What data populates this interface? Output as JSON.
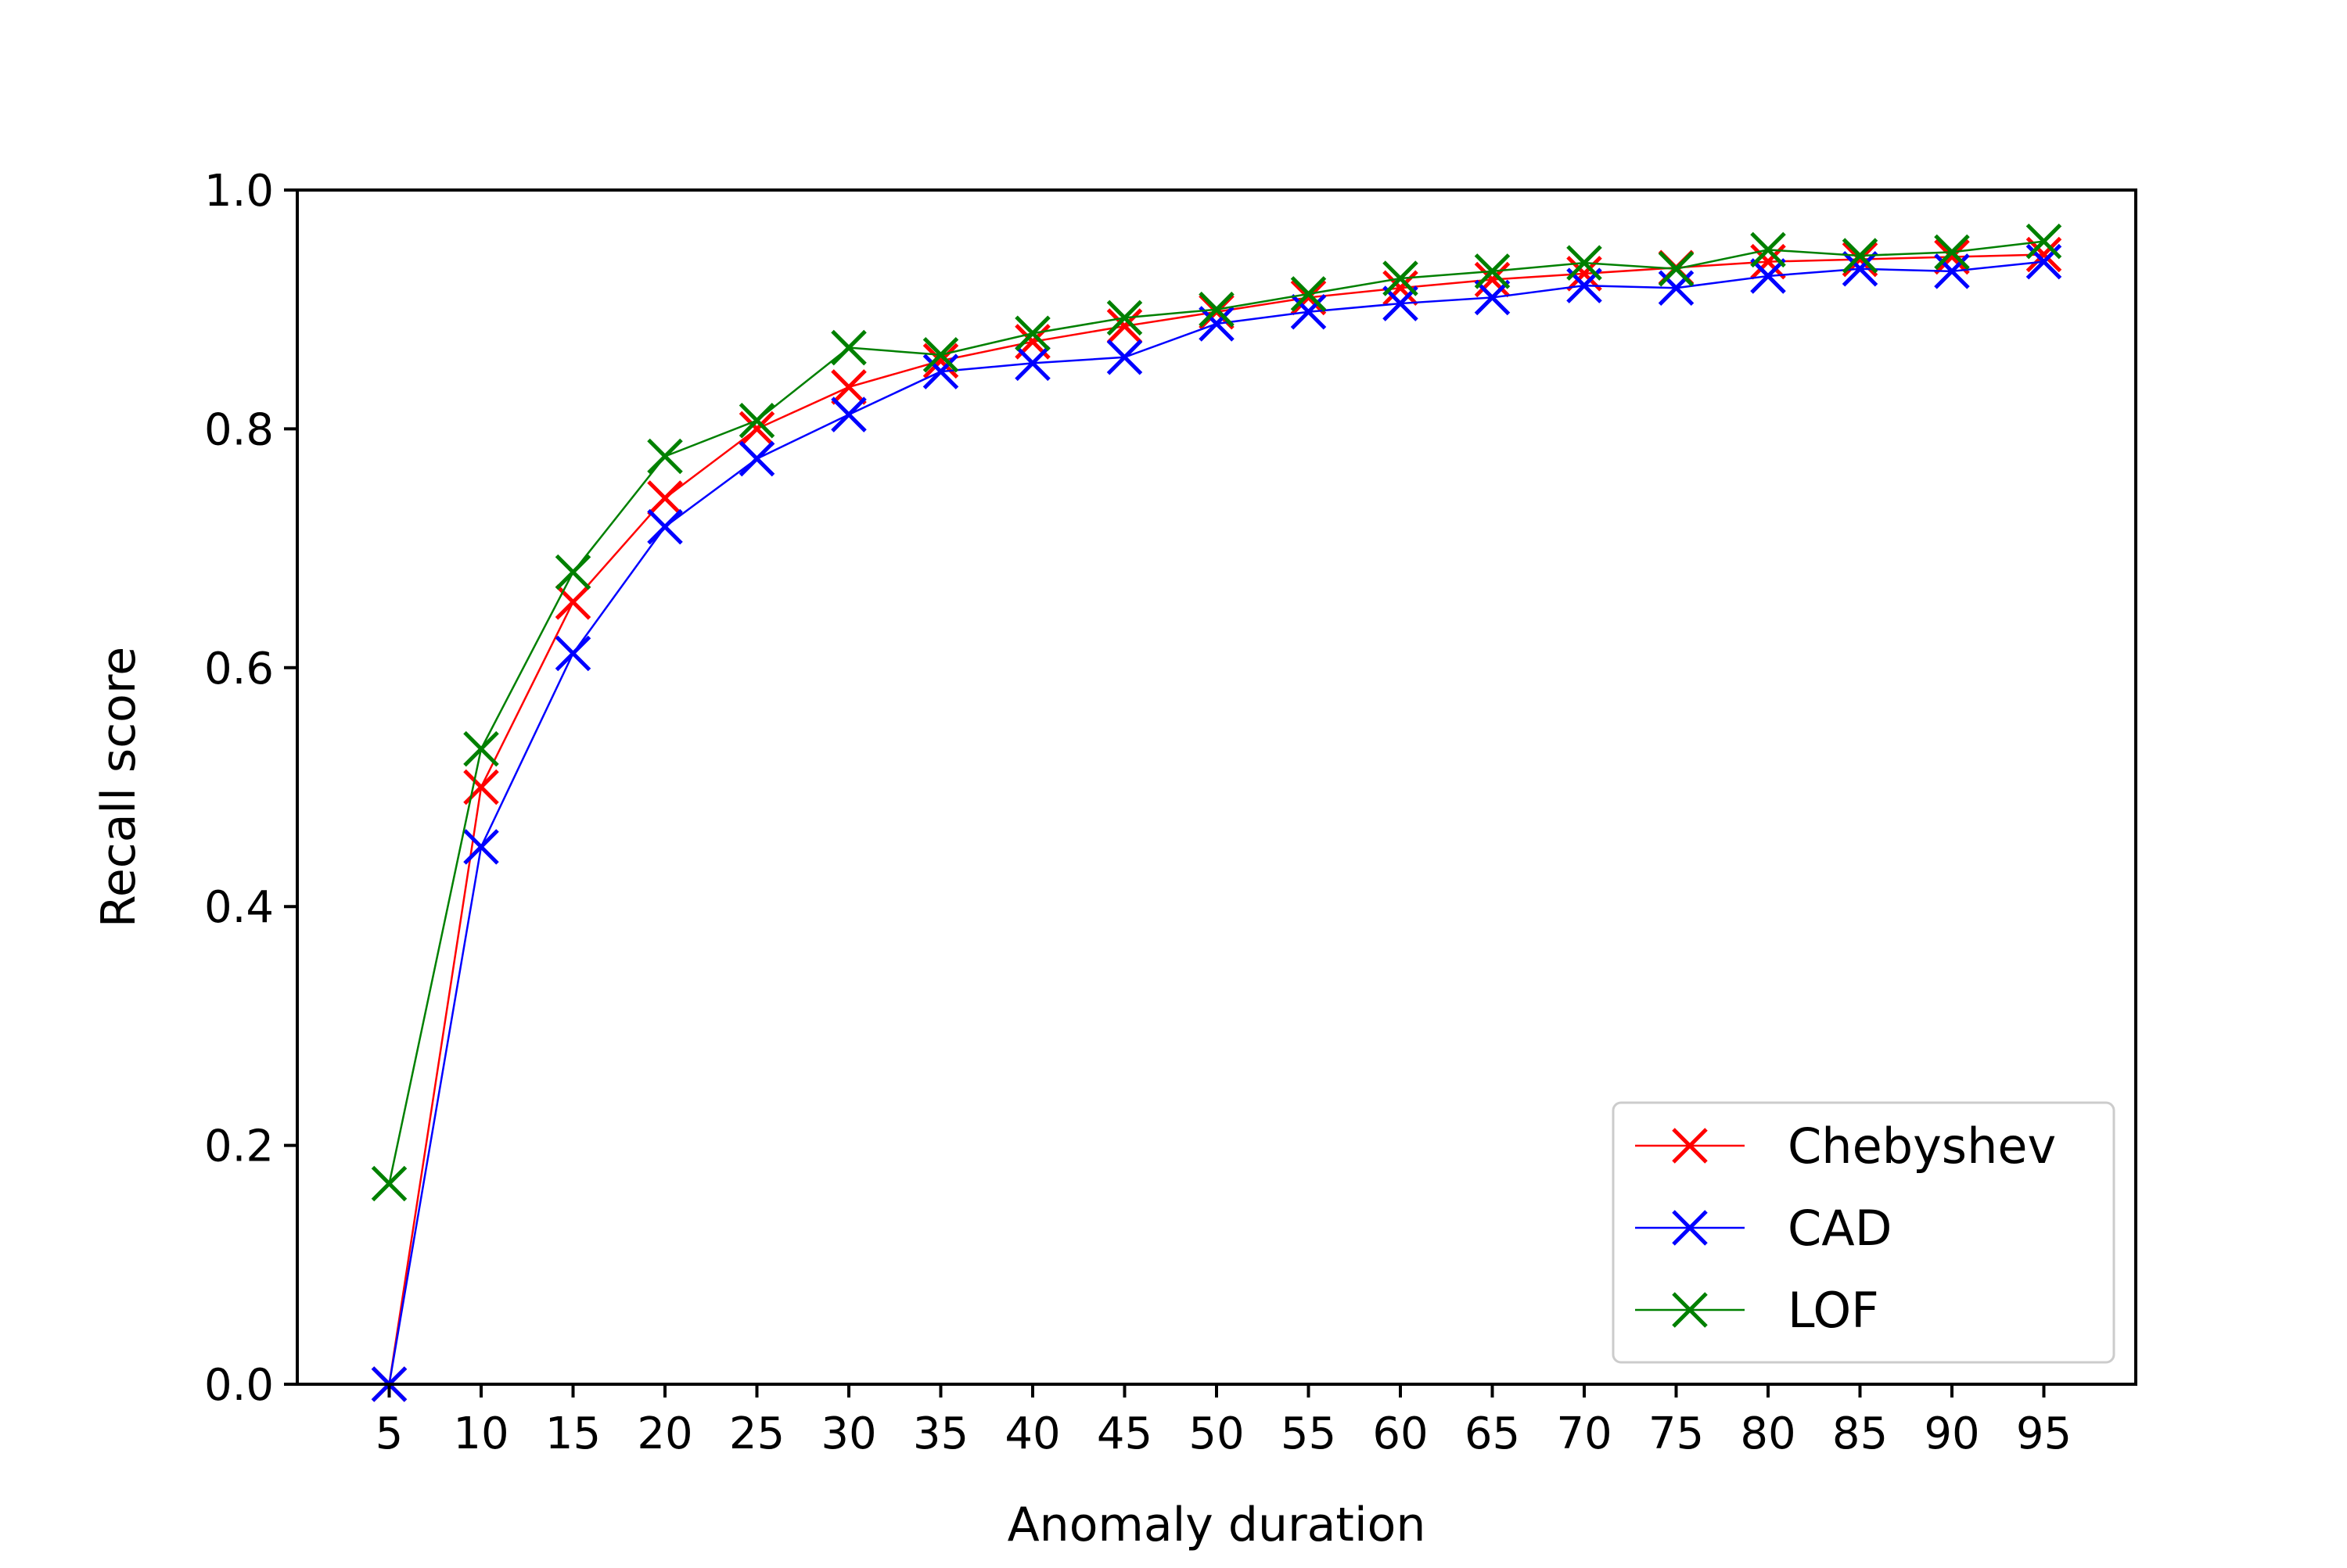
{
  "chart_data": {
    "type": "line",
    "title": "",
    "xlabel": "Anomaly duration",
    "ylabel": "Recall score",
    "categories": [
      5,
      10,
      15,
      20,
      25,
      30,
      35,
      40,
      45,
      50,
      55,
      60,
      65,
      70,
      75,
      80,
      85,
      90,
      95
    ],
    "xlim": [
      0,
      100
    ],
    "ylim": [
      0,
      1
    ],
    "yticks": [
      0.0,
      0.2,
      0.4,
      0.6,
      0.8,
      1.0
    ],
    "ytick_labels": [
      "0.0",
      "0.2",
      "0.4",
      "0.6",
      "0.8",
      "1.0"
    ],
    "xtick_labels": [
      "5",
      "10",
      "15",
      "20",
      "25",
      "30",
      "35",
      "40",
      "45",
      "50",
      "55",
      "60",
      "65",
      "70",
      "75",
      "80",
      "85",
      "90",
      "95"
    ],
    "marker": "x",
    "grid": false,
    "legend_position": "lower-right",
    "series": [
      {
        "name": "Chebyshev",
        "color": "#ff0000",
        "values": [
          0.0,
          0.5,
          0.655,
          0.742,
          0.8,
          0.835,
          0.857,
          0.873,
          0.886,
          0.898,
          0.91,
          0.918,
          0.925,
          0.93,
          0.935,
          0.94,
          0.942,
          0.944,
          0.946
        ]
      },
      {
        "name": "CAD",
        "color": "#0000ff",
        "values": [
          0.0,
          0.45,
          0.612,
          0.718,
          0.775,
          0.812,
          0.848,
          0.855,
          0.86,
          0.888,
          0.898,
          0.905,
          0.91,
          0.92,
          0.918,
          0.928,
          0.934,
          0.932,
          0.94
        ]
      },
      {
        "name": "LOF",
        "color": "#008000",
        "values": [
          0.168,
          0.532,
          0.68,
          0.777,
          0.807,
          0.868,
          0.862,
          0.88,
          0.893,
          0.9,
          0.913,
          0.926,
          0.932,
          0.939,
          0.934,
          0.95,
          0.945,
          0.948,
          0.957
        ]
      }
    ]
  }
}
